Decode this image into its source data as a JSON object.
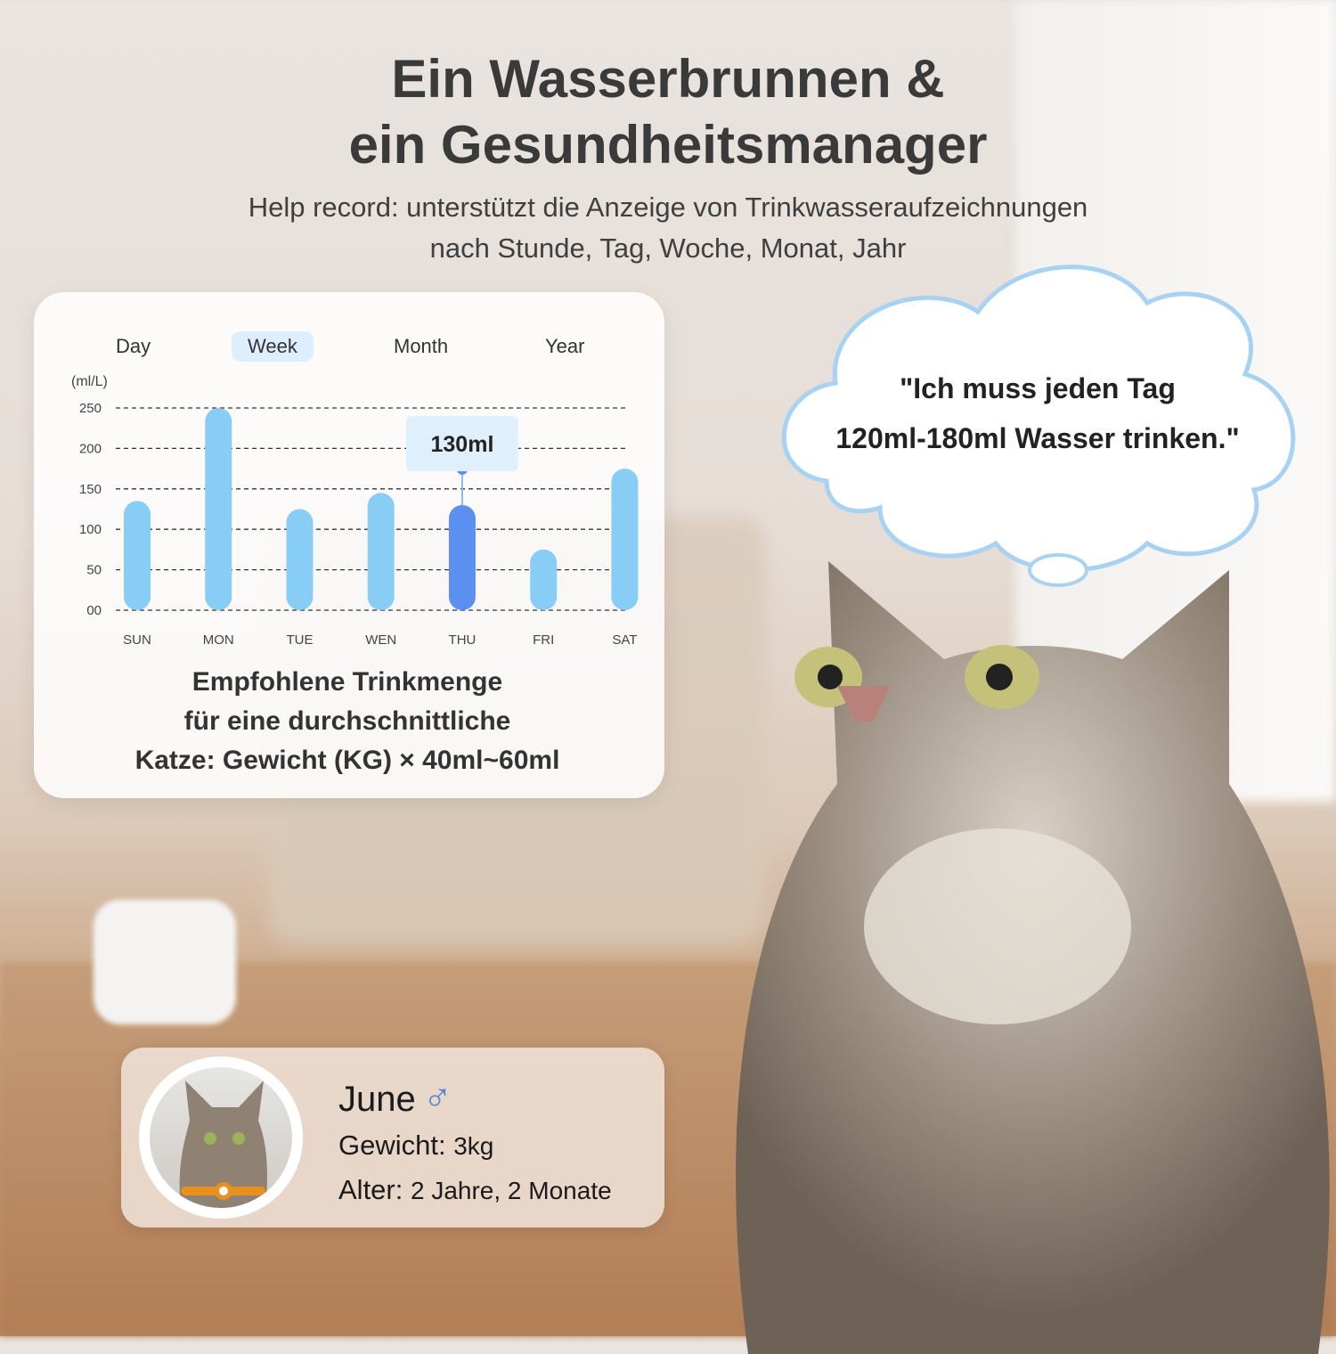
{
  "header": {
    "title_line1": "Ein Wasserbrunnen &",
    "title_line2": "ein Gesundheitsmanager",
    "subtitle_line1": "Help record: unterstützt die Anzeige von Trinkwasseraufzeichnungen",
    "subtitle_line2": "nach Stunde, Tag, Woche, Monat, Jahr"
  },
  "chart_card": {
    "tabs": [
      {
        "label": "Day"
      },
      {
        "label": "Week",
        "active": true
      },
      {
        "label": "Month"
      },
      {
        "label": "Year"
      }
    ],
    "unit": "(ml/L)",
    "tooltip": "130ml",
    "recommendation_line1": "Empfohlene Trinkmenge",
    "recommendation_line2": "für eine durchschnittliche",
    "recommendation_line3": "Katze: Gewicht (KG) × 40ml~60ml"
  },
  "chart_data": {
    "type": "bar",
    "categories": [
      "SUN",
      "MON",
      "TUE",
      "WEN",
      "THU",
      "FRI",
      "SAT"
    ],
    "values": [
      135,
      250,
      125,
      145,
      130,
      75,
      175
    ],
    "highlighted": "THU",
    "ylim": [
      0,
      250
    ],
    "yticks": [
      "00",
      "50",
      "100",
      "150",
      "200",
      "250"
    ],
    "ylabel": "(ml/L)",
    "grid": true,
    "colors": {
      "bar": "#88cdf6",
      "highlight": "#5b8ff0"
    }
  },
  "thought_bubble": {
    "line1": "\"Ich muss jeden Tag",
    "line2": "120ml-180ml Wasser trinken.\""
  },
  "profile": {
    "name": "June",
    "gender_icon": "male-symbol-icon",
    "gender_symbol": "♂",
    "weight_label": "Gewicht:",
    "weight_value": "3kg",
    "age_label": "Alter:",
    "age_value": "2 Jahre, 2 Monate"
  }
}
